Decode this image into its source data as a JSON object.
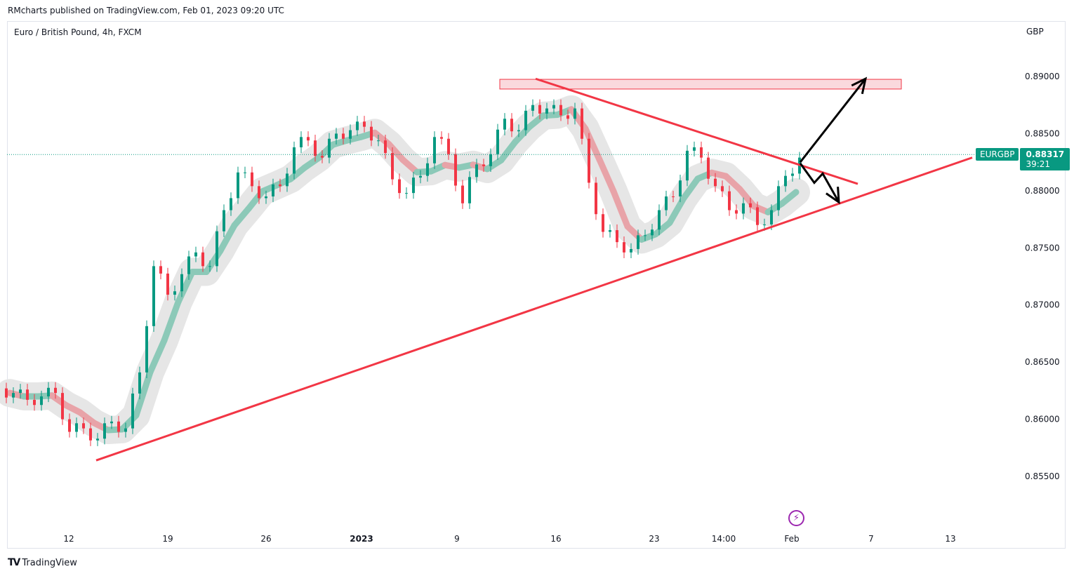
{
  "header": {
    "published": "RMcharts published on TradingView.com, Feb 01, 2023 09:20 UTC",
    "symbol_title": "Euro / British Pound, 4h, FXCM",
    "currency": "GBP"
  },
  "footer": {
    "brand": "TradingView"
  },
  "price_label": {
    "symbol": "EURGBP",
    "price": "0.88317",
    "countdown": "39:21"
  },
  "colors": {
    "up": "#089981",
    "down": "#f23645",
    "trend": "#f23645",
    "arrow": "#000000",
    "zone": "#f8c9ce",
    "label": "#089981",
    "alert": "#9c27b0"
  },
  "chart_data": {
    "type": "candlestick",
    "title": "Euro / British Pound, 4h, FXCM",
    "ylabel": "GBP",
    "ylim": [
      0.8505,
      0.8935
    ],
    "grid": false,
    "closes": [
      0.8623,
      0.8617,
      0.862,
      0.8623,
      0.8589,
      0.8592,
      0.8583,
      0.8598,
      0.8592,
      0.8641,
      0.8734,
      0.8709,
      0.8727,
      0.8746,
      0.8734,
      0.8783,
      0.8816,
      0.8804,
      0.8795,
      0.8804,
      0.8838,
      0.8844,
      0.8829,
      0.885,
      0.8853,
      0.8856,
      0.8844,
      0.881,
      0.8798,
      0.8813,
      0.8847,
      0.8832,
      0.8789,
      0.8823,
      0.8832,
      0.8863,
      0.8853,
      0.8875,
      0.8872,
      0.8866,
      0.8872,
      0.8807,
      0.8764,
      0.8755,
      0.8749,
      0.8761,
      0.8783,
      0.8795,
      0.8835,
      0.8829,
      0.8804,
      0.8783,
      0.8789,
      0.877,
      0.8783,
      0.8813,
      0.8829
    ],
    "last_price": 0.88317,
    "y_ticks": [
      "0.85500",
      "0.86000",
      "0.86500",
      "0.87000",
      "0.87500",
      "0.88000",
      "0.88500",
      "0.89000"
    ],
    "x_ticks": [
      {
        "label": "12",
        "at": 4.2
      },
      {
        "label": "19",
        "at": 11.25
      },
      {
        "label": "26",
        "at": 18.25
      },
      {
        "label": "2023",
        "at": 25.05,
        "bold": true
      },
      {
        "label": "9",
        "at": 31.85
      },
      {
        "label": "16",
        "at": 38.9
      },
      {
        "label": "23",
        "at": 45.9
      },
      {
        "label": "14:00",
        "at": 50.85
      },
      {
        "label": "Feb",
        "at": 55.7
      },
      {
        "label": "7",
        "at": 61.35
      },
      {
        "label": "13",
        "at": 67.0
      }
    ],
    "annotations": {
      "support_line": [
        [
          6.15,
          0.8564
        ],
        [
          68.55,
          0.8829
        ]
      ],
      "resistance_line": [
        [
          37.45,
          0.8898
        ],
        [
          60.4,
          0.8806
        ]
      ],
      "zone": {
        "x": [
          34.9,
          63.5
        ],
        "price": [
          0.8889,
          0.88975
        ]
      },
      "arrow_up": [
        [
          56.3,
          0.8825
        ],
        [
          60.95,
          0.8898
        ]
      ],
      "arrow_down": [
        [
          56.3,
          0.8824
        ],
        [
          57.3,
          0.8807
        ],
        [
          57.9,
          0.8815
        ],
        [
          59.05,
          0.879
        ]
      ]
    }
  }
}
